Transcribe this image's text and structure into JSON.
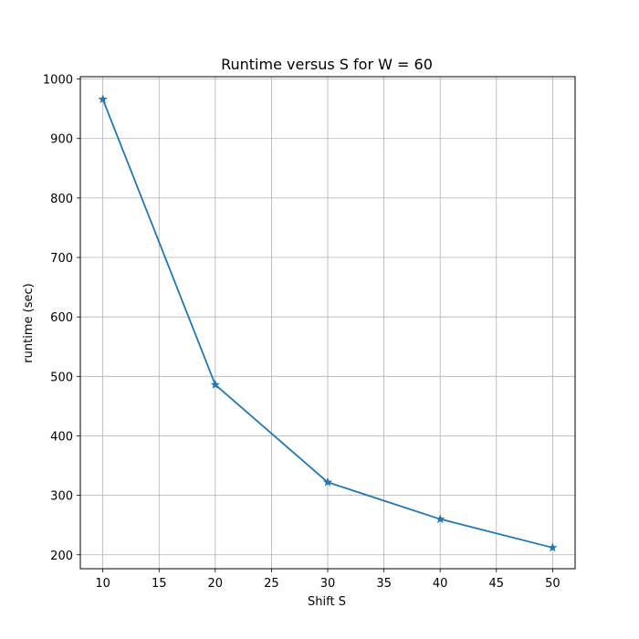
{
  "chart_data": {
    "type": "line",
    "title": "Runtime versus S for W = 60",
    "xlabel": "Shift S",
    "ylabel": "runtime (sec)",
    "xlim": [
      8.0,
      52.0
    ],
    "ylim": [
      176.6,
      1004.0
    ],
    "xticks": [
      10,
      15,
      20,
      25,
      30,
      35,
      40,
      45,
      50
    ],
    "yticks": [
      200,
      300,
      400,
      500,
      600,
      700,
      800,
      900,
      1000
    ],
    "grid": true,
    "marker": "star",
    "line_color": "#1f77b4",
    "series": [
      {
        "x": [
          10,
          20,
          30,
          40,
          50
        ],
        "values": [
          966,
          486,
          322,
          260,
          212
        ]
      }
    ]
  }
}
